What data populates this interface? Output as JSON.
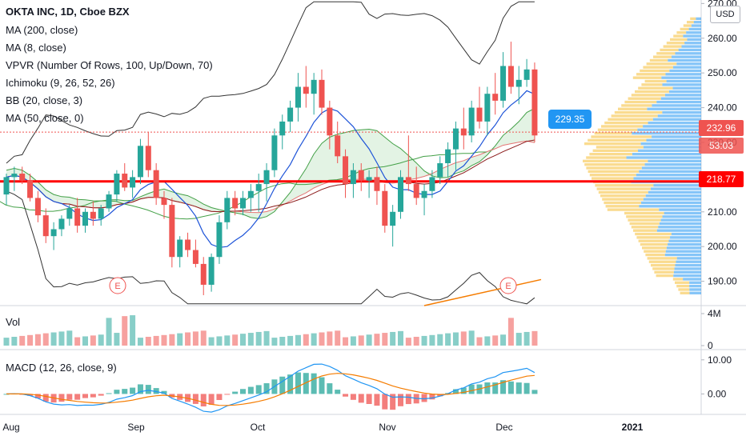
{
  "legend": {
    "title": "OKTA INC, 1D, Cboe BZX",
    "indicators": [
      "MA (200, close)",
      "MA (8, close)",
      "VPVR (Number Of Rows, 100, Up/Down, 70)",
      "Ichimoku (9, 26, 52, 26)",
      "BB (20, close, 3)",
      "MA (50, close, 0)"
    ],
    "vol": "Vol",
    "macd": "MACD (12, 26, close, 9)"
  },
  "currency_button": "USD",
  "price_labels": {
    "current": "232.96",
    "countdown": "53:03",
    "support": "218.77",
    "bubble": "229.35"
  },
  "earnings_marker": "E",
  "colors": {
    "up": "#26a69a",
    "down": "#ef5350",
    "support": "#ff0000",
    "ma_blue": "#1e54d8",
    "ma_darkred": "#8b1a1a",
    "ma_red": "#ef5350",
    "ma_orange": "#f57c00",
    "ichimoku_green": "#43a047",
    "bb_gray": "#333333",
    "vp_up": "#2196f3",
    "vp_down": "#f6c344"
  },
  "chart_data": {
    "type": "candlestick",
    "price_axis": {
      "ticks": [
        "270.00",
        "260.00",
        "250.00",
        "240.00",
        "230.00",
        "220.00",
        "210.00",
        "200.00",
        "190.00"
      ],
      "range": [
        183,
        271
      ]
    },
    "time_axis": {
      "labels": [
        "Aug",
        "Sep",
        "Oct",
        "Nov",
        "Dec",
        "2021"
      ]
    },
    "support_level": 218.77,
    "ohlc": [
      [
        215,
        221,
        212,
        220
      ],
      [
        220,
        223,
        216,
        221
      ],
      [
        221,
        223,
        218,
        219
      ],
      [
        219,
        221,
        213,
        214
      ],
      [
        214,
        216,
        207,
        209
      ],
      [
        209,
        211,
        201,
        203
      ],
      [
        203,
        207,
        199,
        205
      ],
      [
        205,
        209,
        203,
        208
      ],
      [
        208,
        212,
        206,
        211
      ],
      [
        211,
        214,
        204,
        206
      ],
      [
        206,
        211,
        204,
        210
      ],
      [
        210,
        213,
        206,
        208
      ],
      [
        208,
        212,
        206,
        211
      ],
      [
        211,
        216,
        210,
        215
      ],
      [
        215,
        222,
        213,
        221
      ],
      [
        221,
        224,
        216,
        217
      ],
      [
        217,
        222,
        214,
        220
      ],
      [
        220,
        231,
        218,
        229
      ],
      [
        229,
        233,
        220,
        222
      ],
      [
        222,
        224,
        212,
        214
      ],
      [
        214,
        216,
        208,
        212
      ],
      [
        212,
        214,
        194,
        197
      ],
      [
        197,
        203,
        194,
        202
      ],
      [
        202,
        204,
        197,
        199
      ],
      [
        199,
        202,
        194,
        195
      ],
      [
        195,
        197,
        186,
        189
      ],
      [
        189,
        198,
        187,
        197
      ],
      [
        197,
        209,
        195,
        207
      ],
      [
        207,
        216,
        205,
        214
      ],
      [
        214,
        216,
        209,
        211
      ],
      [
        211,
        216,
        209,
        214
      ],
      [
        214,
        218,
        210,
        216
      ],
      [
        216,
        221,
        210,
        218
      ],
      [
        218,
        224,
        213,
        222
      ],
      [
        222,
        234,
        220,
        232
      ],
      [
        232,
        238,
        228,
        236
      ],
      [
        236,
        242,
        233,
        240
      ],
      [
        240,
        250,
        236,
        246
      ],
      [
        246,
        252,
        240,
        244
      ],
      [
        244,
        250,
        238,
        248
      ],
      [
        248,
        251,
        238,
        240
      ],
      [
        240,
        242,
        228,
        232
      ],
      [
        232,
        236,
        224,
        226
      ],
      [
        226,
        228,
        214,
        218
      ],
      [
        218,
        224,
        214,
        222
      ],
      [
        222,
        224,
        216,
        219
      ],
      [
        219,
        222,
        214,
        220
      ],
      [
        220,
        223,
        212,
        216
      ],
      [
        216,
        218,
        204,
        206
      ],
      [
        206,
        212,
        200,
        210
      ],
      [
        210,
        222,
        208,
        220
      ],
      [
        220,
        232,
        216,
        218
      ],
      [
        218,
        223,
        212,
        214
      ],
      [
        214,
        218,
        209,
        216
      ],
      [
        216,
        222,
        214,
        220
      ],
      [
        220,
        226,
        218,
        224
      ],
      [
        224,
        230,
        220,
        228
      ],
      [
        228,
        236,
        222,
        234
      ],
      [
        234,
        240,
        228,
        232
      ],
      [
        232,
        242,
        230,
        240
      ],
      [
        240,
        246,
        234,
        236
      ],
      [
        236,
        246,
        232,
        244
      ],
      [
        244,
        250,
        238,
        242
      ],
      [
        242,
        256,
        240,
        252
      ],
      [
        252,
        259,
        244,
        246
      ],
      [
        246,
        252,
        241,
        248
      ],
      [
        248,
        254,
        246,
        251
      ],
      [
        251,
        253,
        230,
        232
      ]
    ],
    "volume": {
      "axis_ticks": [
        "4M",
        "0"
      ],
      "range": [
        0,
        4500000
      ]
    },
    "macd": {
      "axis_ticks": [
        "10.00",
        "0.00"
      ],
      "range": [
        -6,
        13
      ]
    }
  }
}
